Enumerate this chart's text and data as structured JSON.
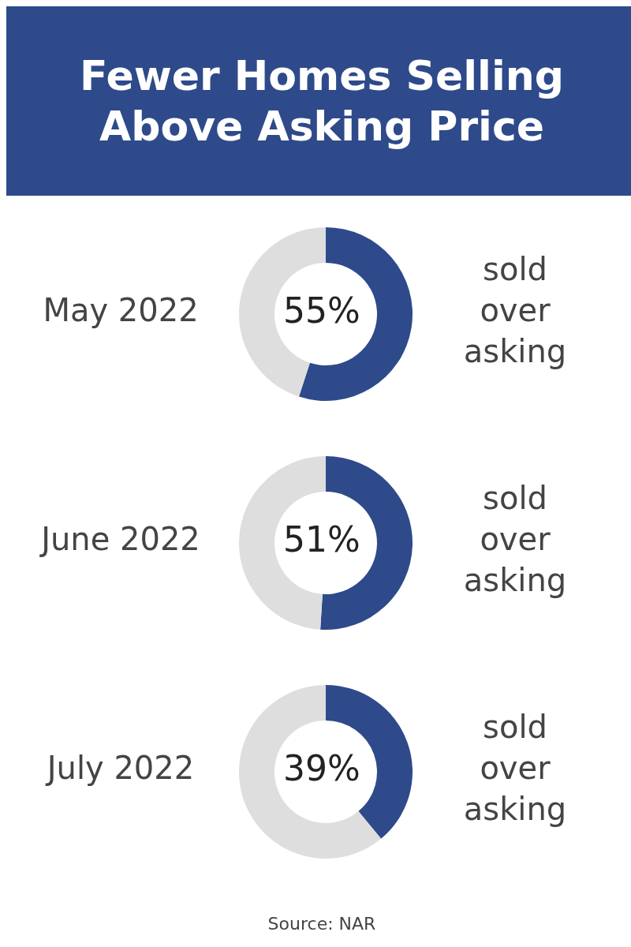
{
  "chart_data": [
    {
      "type": "donut",
      "title": "May 2022",
      "subtitle": "Fewer Homes Selling Above Asking Price",
      "annotations": [
        "55%"
      ],
      "categories": [
        "sold over asking",
        null
      ],
      "values": [
        55,
        45
      ],
      "colors": [
        "#2e4a8a",
        "#dedede"
      ]
    },
    {
      "type": "donut",
      "title": "June 2022",
      "annotations": [
        "51%"
      ],
      "categories": [
        "sold over asking",
        null
      ],
      "values": [
        51,
        49
      ],
      "colors": [
        "#2e4a8a",
        "#dedede"
      ]
    },
    {
      "type": "donut",
      "title": "July 2022",
      "annotations": [
        "39%",
        "Source: NAR"
      ],
      "categories": [
        "sold over asking",
        null
      ],
      "values": [
        39,
        61
      ],
      "colors": [
        "#2e4a8a",
        "#dedede"
      ]
    }
  ]
}
